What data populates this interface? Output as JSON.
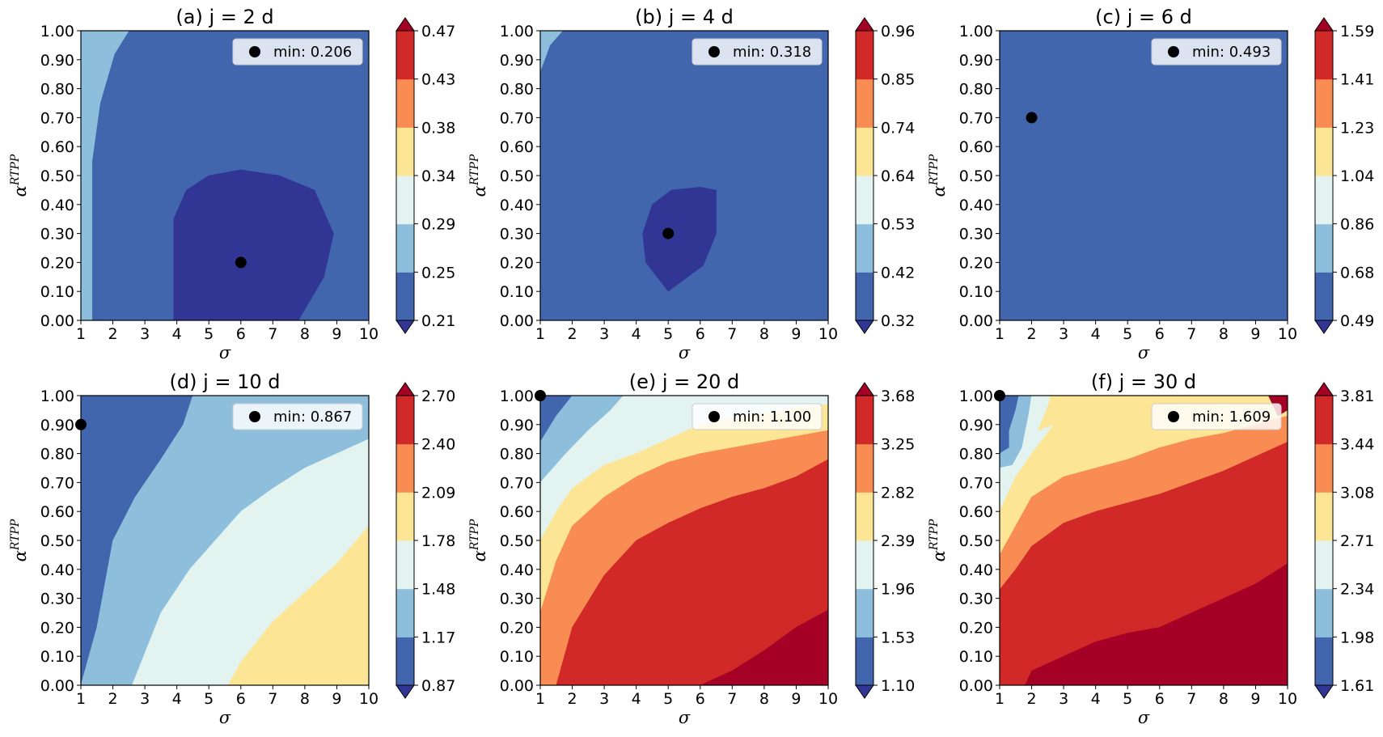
{
  "figure": {
    "colormap": [
      "#313695",
      "#4166ae",
      "#8dbfdc",
      "#e3f4f0",
      "#fde596",
      "#f88c52",
      "#d02927",
      "#a50026"
    ]
  },
  "chart_data": [
    {
      "type": "contour",
      "panel": "a",
      "title": "(a) j = 2 d",
      "xlabel": "σ",
      "ylabel_base": "α",
      "ylabel_sup": "RTPP",
      "xlim": [
        1,
        10
      ],
      "ylim": [
        0,
        1
      ],
      "xticks": [
        "1",
        "2",
        "3",
        "4",
        "5",
        "6",
        "7",
        "8",
        "9",
        "10"
      ],
      "yticks": [
        "0.00",
        "0.10",
        "0.20",
        "0.30",
        "0.40",
        "0.50",
        "0.60",
        "0.70",
        "0.80",
        "0.90",
        "1.00"
      ],
      "levels": [
        "0.21",
        "0.25",
        "0.29",
        "0.34",
        "0.38",
        "0.43",
        "0.47"
      ],
      "min_point": {
        "x": 6,
        "y": 0.2
      },
      "legend_label": "min: 0.206",
      "background_level": 1,
      "regions": [
        {
          "level": 2,
          "points": [
            [
              1,
              0
            ],
            [
              1.35,
              0
            ],
            [
              1.35,
              0.55
            ],
            [
              1.6,
              0.75
            ],
            [
              2.05,
              0.92
            ],
            [
              2.5,
              1
            ],
            [
              1,
              1
            ]
          ]
        },
        {
          "level": 0,
          "points": [
            [
              3.9,
              0
            ],
            [
              7.8,
              0
            ],
            [
              8.6,
              0.15
            ],
            [
              8.9,
              0.3
            ],
            [
              8.3,
              0.45
            ],
            [
              7.2,
              0.5
            ],
            [
              6,
              0.52
            ],
            [
              5,
              0.5
            ],
            [
              4.3,
              0.45
            ],
            [
              3.9,
              0.35
            ]
          ]
        }
      ]
    },
    {
      "type": "contour",
      "panel": "b",
      "title": "(b) j = 4 d",
      "xlabel": "σ",
      "ylabel_base": "α",
      "ylabel_sup": "RTPP",
      "xlim": [
        1,
        10
      ],
      "ylim": [
        0,
        1
      ],
      "xticks": [
        "1",
        "2",
        "3",
        "4",
        "5",
        "6",
        "7",
        "8",
        "9",
        "10"
      ],
      "yticks": [
        "0.00",
        "0.10",
        "0.20",
        "0.30",
        "0.40",
        "0.50",
        "0.60",
        "0.70",
        "0.80",
        "0.90",
        "1.00"
      ],
      "levels": [
        "0.32",
        "0.42",
        "0.53",
        "0.64",
        "0.74",
        "0.85",
        "0.96"
      ],
      "min_point": {
        "x": 5,
        "y": 0.3
      },
      "legend_label": "min: 0.318",
      "background_level": 1,
      "regions": [
        {
          "level": 2,
          "points": [
            [
              1,
              0.86
            ],
            [
              1.3,
              0.95
            ],
            [
              1.7,
              1
            ],
            [
              1,
              1
            ]
          ]
        },
        {
          "level": 0,
          "points": [
            [
              5,
              0.1
            ],
            [
              6.1,
              0.19
            ],
            [
              6.5,
              0.3
            ],
            [
              6.5,
              0.45
            ],
            [
              6,
              0.46
            ],
            [
              5.1,
              0.45
            ],
            [
              4.5,
              0.4
            ],
            [
              4.2,
              0.3
            ],
            [
              4.3,
              0.2
            ]
          ]
        }
      ]
    },
    {
      "type": "contour",
      "panel": "c",
      "title": "(c) j = 6 d",
      "xlabel": "σ",
      "ylabel_base": "α",
      "ylabel_sup": "RTPP",
      "xlim": [
        1,
        10
      ],
      "ylim": [
        0,
        1
      ],
      "xticks": [
        "1",
        "2",
        "3",
        "4",
        "5",
        "6",
        "7",
        "8",
        "9",
        "10"
      ],
      "yticks": [
        "0.00",
        "0.10",
        "0.20",
        "0.30",
        "0.40",
        "0.50",
        "0.60",
        "0.70",
        "0.80",
        "0.90",
        "1.00"
      ],
      "levels": [
        "0.49",
        "0.68",
        "0.86",
        "1.04",
        "1.23",
        "1.41",
        "1.59"
      ],
      "min_point": {
        "x": 2,
        "y": 0.7
      },
      "legend_label": "min: 0.493",
      "background_level": 1,
      "regions": []
    },
    {
      "type": "contour",
      "panel": "d",
      "title": "(d) j = 10 d",
      "xlabel": "σ",
      "ylabel_base": "α",
      "ylabel_sup": "RTPP",
      "xlim": [
        1,
        10
      ],
      "ylim": [
        0,
        1
      ],
      "xticks": [
        "1",
        "2",
        "3",
        "4",
        "5",
        "6",
        "7",
        "8",
        "9",
        "10"
      ],
      "yticks": [
        "0.00",
        "0.10",
        "0.20",
        "0.30",
        "0.40",
        "0.50",
        "0.60",
        "0.70",
        "0.80",
        "0.90",
        "1.00"
      ],
      "levels": [
        "0.87",
        "1.17",
        "1.48",
        "1.78",
        "2.09",
        "2.40",
        "2.70"
      ],
      "min_point": {
        "x": 1,
        "y": 0.9
      },
      "legend_label": "min: 0.867",
      "background_level": 1,
      "regions": [
        {
          "level": 2,
          "points": [
            [
              1,
              0
            ],
            [
              1.5,
              0.2
            ],
            [
              2,
              0.5
            ],
            [
              2.7,
              0.65
            ],
            [
              3.5,
              0.78
            ],
            [
              4.2,
              0.9
            ],
            [
              4.5,
              1
            ],
            [
              10,
              1
            ],
            [
              10,
              0
            ]
          ]
        },
        {
          "level": 3,
          "points": [
            [
              2.6,
              0
            ],
            [
              3.5,
              0.25
            ],
            [
              4.4,
              0.4
            ],
            [
              5.2,
              0.5
            ],
            [
              6,
              0.6
            ],
            [
              7,
              0.68
            ],
            [
              8,
              0.75
            ],
            [
              9,
              0.8
            ],
            [
              10,
              0.85
            ],
            [
              10,
              0
            ]
          ]
        },
        {
          "level": 4,
          "points": [
            [
              5.6,
              0
            ],
            [
              6,
              0.08
            ],
            [
              7,
              0.22
            ],
            [
              8,
              0.32
            ],
            [
              9,
              0.42
            ],
            [
              10,
              0.55
            ],
            [
              10,
              0
            ]
          ]
        }
      ]
    },
    {
      "type": "contour",
      "panel": "e",
      "title": "(e) j = 20 d",
      "xlabel": "σ",
      "ylabel_base": "α",
      "ylabel_sup": "RTPP",
      "xlim": [
        1,
        10
      ],
      "ylim": [
        0,
        1
      ],
      "xticks": [
        "1",
        "2",
        "3",
        "4",
        "5",
        "6",
        "7",
        "8",
        "9",
        "10"
      ],
      "yticks": [
        "0.00",
        "0.10",
        "0.20",
        "0.30",
        "0.40",
        "0.50",
        "0.60",
        "0.70",
        "0.80",
        "0.90",
        "1.00"
      ],
      "levels": [
        "1.10",
        "1.53",
        "1.96",
        "2.39",
        "2.82",
        "3.25",
        "3.68"
      ],
      "min_point": {
        "x": 1,
        "y": 1
      },
      "legend_label": "min: 1.100",
      "background_level": 1,
      "regions": [
        {
          "level": 2,
          "points": [
            [
              1,
              0.84
            ],
            [
              1.5,
              0.93
            ],
            [
              2,
              1
            ],
            [
              10,
              1
            ],
            [
              10,
              0
            ],
            [
              1,
              0
            ]
          ]
        },
        {
          "level": 3,
          "points": [
            [
              1,
              0.7
            ],
            [
              1.8,
              0.8
            ],
            [
              2.5,
              0.88
            ],
            [
              3.2,
              0.95
            ],
            [
              3.6,
              1
            ],
            [
              10,
              1
            ],
            [
              10,
              0
            ],
            [
              1,
              0
            ]
          ]
        },
        {
          "level": 4,
          "points": [
            [
              1,
              0.5
            ],
            [
              1.5,
              0.6
            ],
            [
              2,
              0.68
            ],
            [
              3,
              0.76
            ],
            [
              4,
              0.8
            ],
            [
              5,
              0.85
            ],
            [
              6,
              0.9
            ],
            [
              7,
              0.92
            ],
            [
              8,
              0.94
            ],
            [
              10,
              0.97
            ],
            [
              10,
              0
            ],
            [
              1,
              0
            ]
          ]
        },
        {
          "level": 5,
          "points": [
            [
              1,
              0.25
            ],
            [
              1.5,
              0.43
            ],
            [
              2,
              0.55
            ],
            [
              3,
              0.65
            ],
            [
              4,
              0.72
            ],
            [
              5,
              0.77
            ],
            [
              6,
              0.8
            ],
            [
              7,
              0.82
            ],
            [
              8,
              0.84
            ],
            [
              10,
              0.88
            ],
            [
              10,
              0
            ],
            [
              1,
              0
            ]
          ]
        },
        {
          "level": 6,
          "points": [
            [
              1.5,
              0
            ],
            [
              2,
              0.2
            ],
            [
              3,
              0.38
            ],
            [
              4,
              0.5
            ],
            [
              5,
              0.56
            ],
            [
              6,
              0.61
            ],
            [
              7,
              0.65
            ],
            [
              8,
              0.68
            ],
            [
              9,
              0.72
            ],
            [
              10,
              0.78
            ],
            [
              10,
              0
            ]
          ]
        },
        {
          "level": 7,
          "points": [
            [
              6,
              0
            ],
            [
              7,
              0.05
            ],
            [
              8,
              0.12
            ],
            [
              9,
              0.2
            ],
            [
              10,
              0.26
            ],
            [
              10,
              0
            ]
          ]
        }
      ]
    },
    {
      "type": "contour",
      "panel": "f",
      "title": "(f) j = 30 d",
      "xlabel": "σ",
      "ylabel_base": "α",
      "ylabel_sup": "RTPP",
      "xlim": [
        1,
        10
      ],
      "ylim": [
        0,
        1
      ],
      "xticks": [
        "1",
        "2",
        "3",
        "4",
        "5",
        "6",
        "7",
        "8",
        "9",
        "10"
      ],
      "yticks": [
        "0.00",
        "0.10",
        "0.20",
        "0.30",
        "0.40",
        "0.50",
        "0.60",
        "0.70",
        "0.80",
        "0.90",
        "1.00"
      ],
      "levels": [
        "1.61",
        "1.98",
        "2.34",
        "2.71",
        "3.08",
        "3.44",
        "3.81"
      ],
      "min_point": {
        "x": 1,
        "y": 1
      },
      "legend_label": "min: 1.609",
      "background_level": 1,
      "regions": [
        {
          "level": 2,
          "points": [
            [
              1.3,
              0.88
            ],
            [
              1.5,
              0.95
            ],
            [
              1.6,
              1
            ],
            [
              10,
              1
            ],
            [
              10,
              0
            ],
            [
              1,
              0
            ],
            [
              1,
              0.8
            ],
            [
              1.3,
              0.82
            ]
          ]
        },
        {
          "level": 3,
          "points": [
            [
              1.7,
              0.82
            ],
            [
              1.9,
              0.93
            ],
            [
              2,
              1
            ],
            [
              10,
              1
            ],
            [
              10,
              0
            ],
            [
              1,
              0
            ],
            [
              1,
              0.75
            ],
            [
              1.4,
              0.76
            ]
          ]
        },
        {
          "level": 4,
          "points": [
            [
              2.2,
              0.88
            ],
            [
              2.5,
              0.96
            ],
            [
              2.6,
              1
            ],
            [
              10,
              1
            ],
            [
              10,
              0
            ],
            [
              1,
              0
            ],
            [
              1,
              0.6
            ],
            [
              1.5,
              0.72
            ],
            [
              2,
              0.8
            ],
            [
              2.7,
              0.9
            ],
            [
              2.2,
              0.88
            ]
          ]
        },
        {
          "level": 5,
          "points": [
            [
              1,
              0.45
            ],
            [
              1.5,
              0.55
            ],
            [
              2,
              0.65
            ],
            [
              3,
              0.72
            ],
            [
              4,
              0.75
            ],
            [
              5,
              0.78
            ],
            [
              6,
              0.82
            ],
            [
              7,
              0.85
            ],
            [
              8,
              0.87
            ],
            [
              9,
              0.9
            ],
            [
              10,
              0.93
            ],
            [
              10,
              0
            ],
            [
              1,
              0
            ]
          ]
        },
        {
          "level": 6,
          "points": [
            [
              1,
              0.33
            ],
            [
              1.5,
              0.4
            ],
            [
              2,
              0.48
            ],
            [
              3,
              0.56
            ],
            [
              4,
              0.6
            ],
            [
              5,
              0.63
            ],
            [
              6,
              0.66
            ],
            [
              7,
              0.7
            ],
            [
              8,
              0.74
            ],
            [
              9,
              0.79
            ],
            [
              10,
              0.84
            ],
            [
              10,
              0
            ],
            [
              1,
              0
            ]
          ]
        },
        {
          "level": 7,
          "points": [
            [
              1.8,
              0
            ],
            [
              2,
              0.05
            ],
            [
              3,
              0.1
            ],
            [
              4,
              0.15
            ],
            [
              5,
              0.18
            ],
            [
              6,
              0.2
            ],
            [
              7,
              0.25
            ],
            [
              8,
              0.3
            ],
            [
              9,
              0.35
            ],
            [
              10,
              0.42
            ],
            [
              10,
              0
            ]
          ]
        },
        {
          "level": 7,
          "points": [
            [
              9.4,
              1
            ],
            [
              9.7,
              0.93
            ],
            [
              10,
              0.95
            ],
            [
              10,
              1
            ]
          ]
        }
      ]
    }
  ]
}
